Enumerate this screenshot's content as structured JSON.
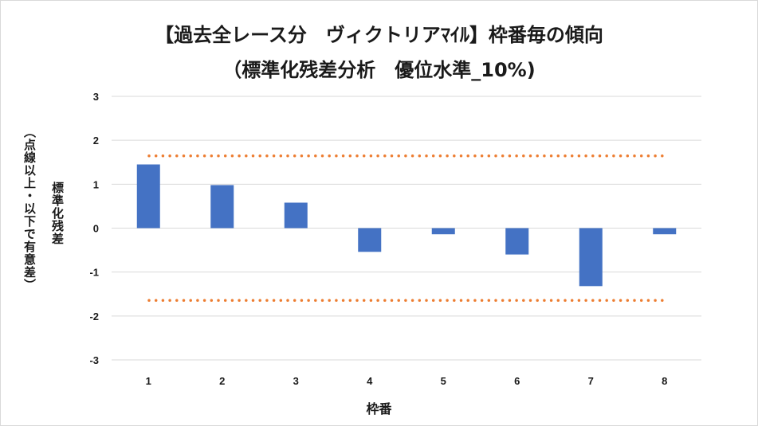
{
  "chart_data": {
    "type": "bar",
    "title": "【過去全レース分　ヴィクトリアﾏｲﾙ】枠番毎の傾向",
    "subtitle": "（標準化残差分析　優位水準_10%)",
    "xlabel": "枠番",
    "ylabel": "標準化残差",
    "ylabel2": "（点線以上・以下で有意差）",
    "categories": [
      "1",
      "2",
      "3",
      "4",
      "5",
      "6",
      "7",
      "8"
    ],
    "values": [
      1.45,
      0.98,
      0.58,
      -0.54,
      -0.14,
      -0.6,
      -1.32,
      -0.14
    ],
    "ylim": [
      -3,
      3
    ],
    "yticks": [
      "3",
      "2",
      "1",
      "0",
      "-1",
      "-2",
      "-3"
    ],
    "threshold": 1.645,
    "grid": true,
    "colors": {
      "bar": "#4472C4",
      "threshold_line": "#ED7D31",
      "grid": "#d9d9d9"
    }
  }
}
